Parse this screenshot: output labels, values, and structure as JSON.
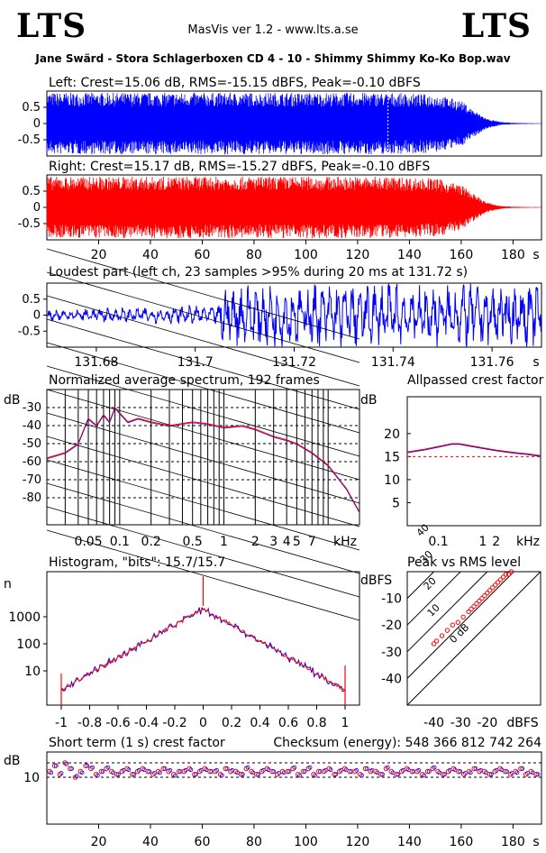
{
  "header": {
    "logo_left": "LTS",
    "logo_right": "LTS",
    "app_title": "MasVis ver 1.2 - www.lts.a.se",
    "track_title": "Jane Swärd - Stora Schlagerboxen CD 4 - 10 - Shimmy Shimmy Ko-Ko Bop.wav"
  },
  "colors": {
    "left": "#0000ff",
    "right": "#ff0000",
    "frame": "#000000"
  },
  "chart_data": [
    {
      "id": "left_wave",
      "type": "area",
      "title": "Left: Crest=15.06 dB, RMS=-15.15 dBFS, Peak=-0.10 dBFS",
      "ylim": [
        -1,
        1
      ],
      "yticks": [
        "0.5",
        "0",
        "-0.5"
      ],
      "envelope": {
        "x": [
          0,
          5,
          20,
          60,
          100,
          130,
          150,
          160,
          165,
          170,
          175,
          180,
          190
        ],
        "amp": [
          0.95,
          0.95,
          0.95,
          0.95,
          0.95,
          0.95,
          0.9,
          0.7,
          0.4,
          0.15,
          0.05,
          0.02,
          0.01
        ]
      },
      "marker_x": 131.72,
      "xlim": [
        0,
        191
      ]
    },
    {
      "id": "right_wave",
      "type": "area",
      "title": "Right: Crest=15.17 dB, RMS=-15.27 dBFS, Peak=-0.10 dBFS",
      "ylim": [
        -1,
        1
      ],
      "yticks": [
        "0.5",
        "0",
        "-0.5"
      ],
      "xticks": [
        "20",
        "40",
        "60",
        "80",
        "100",
        "120",
        "140",
        "160",
        "180"
      ],
      "xunit": "s",
      "xlim": [
        0,
        191
      ]
    },
    {
      "id": "loudest",
      "type": "line",
      "title": "Loudest part (left  ch, 23 samples >95% during 20 ms at 131.72 s)",
      "xlim": [
        131.67,
        131.77
      ],
      "xticks": [
        "131.68",
        "131.7",
        "131.72",
        "131.74",
        "131.76"
      ],
      "xunit": "s",
      "yticks": [
        "0.5",
        "0",
        "-0.5"
      ],
      "ylim": [
        -1,
        1
      ]
    },
    {
      "id": "spectrum",
      "type": "line",
      "title": "Normalized average spectrum, 192 frames",
      "ylabel": "dB",
      "yticks": [
        "-30",
        "-40",
        "-50",
        "-60",
        "-70",
        "-80"
      ],
      "xticks": [
        "0.05",
        "0.1",
        "0.2",
        "0.5",
        "1",
        "2",
        "3",
        "4",
        "5",
        "7"
      ],
      "xunit": "kHz",
      "x_khz": [
        0.02,
        0.03,
        0.04,
        0.05,
        0.06,
        0.07,
        0.08,
        0.09,
        0.1,
        0.12,
        0.15,
        0.2,
        0.3,
        0.5,
        0.7,
        1,
        1.5,
        2,
        3,
        4,
        5,
        7,
        10,
        15,
        20
      ],
      "y_db": [
        -58,
        -55,
        -50,
        -36,
        -40,
        -34,
        -38,
        -30,
        -33,
        -38,
        -36,
        -38,
        -40,
        -38,
        -39,
        -41,
        -40,
        -42,
        -46,
        -48,
        -50,
        -55,
        -62,
        -75,
        -88
      ]
    },
    {
      "id": "allpass",
      "type": "line",
      "title": "Allpassed crest factor",
      "ylabel": "dB",
      "yticks": [
        "20",
        "15",
        "10",
        "5"
      ],
      "xticks": [
        "0.1",
        "1",
        "2"
      ],
      "xunit": "kHz",
      "ref_db": 15,
      "x_khz": [
        0.02,
        0.05,
        0.1,
        0.2,
        0.3,
        0.5,
        1,
        2,
        5,
        10,
        20
      ],
      "y_db": [
        16,
        16.6,
        17.2,
        17.8,
        17.8,
        17.4,
        16.9,
        16.4,
        15.9,
        15.6,
        15.2
      ]
    },
    {
      "id": "histogram",
      "type": "line",
      "title": "Histogram, \"bits\": 15.7/15.7",
      "ylabel": "n",
      "yticks": [
        "1000",
        "100",
        "10"
      ],
      "xticks": [
        "-1",
        "-0.8",
        "-0.6",
        "-0.4",
        "-0.2",
        "0",
        "0.2",
        "0.4",
        "0.6",
        "0.8",
        "1"
      ]
    },
    {
      "id": "peak_rms",
      "type": "scatter",
      "title": "Peak vs RMS level",
      "ylabel": "dBFS",
      "yticks": [
        "-10",
        "-20",
        "-30",
        "-40"
      ],
      "xticks": [
        "-40",
        "-30",
        "-20"
      ],
      "xunit": "dBFS",
      "diag_labels": [
        "40",
        "30",
        "20",
        "10",
        "0 dB"
      ],
      "points": [
        [
          -40,
          -27
        ],
        [
          -39,
          -26
        ],
        [
          -37,
          -24
        ],
        [
          -35,
          -22
        ],
        [
          -33,
          -20
        ],
        [
          -31,
          -19
        ],
        [
          -29,
          -17
        ],
        [
          -27,
          -15
        ],
        [
          -26,
          -14
        ],
        [
          -25,
          -13
        ],
        [
          -24,
          -12
        ],
        [
          -23,
          -11
        ],
        [
          -22,
          -10
        ],
        [
          -21,
          -9
        ],
        [
          -20,
          -8
        ],
        [
          -19,
          -7
        ],
        [
          -18,
          -6
        ],
        [
          -17,
          -5
        ],
        [
          -16,
          -4
        ],
        [
          -15,
          -3
        ],
        [
          -14,
          -2
        ],
        [
          -13,
          -1
        ],
        [
          -12,
          -1
        ],
        [
          -11,
          0
        ]
      ]
    },
    {
      "id": "short_crest",
      "type": "scatter",
      "title": "Short term (1 s) crest factor",
      "checksum": "Checksum (energy):   548 366 812 742 264",
      "ylabel": "dB",
      "yticks": [
        "10"
      ],
      "xticks": [
        "20",
        "40",
        "60",
        "80",
        "100",
        "120",
        "140",
        "160",
        "180"
      ],
      "xunit": "s",
      "ref_dashed_db": [
        10,
        15
      ],
      "x_s": [
        1,
        3,
        5,
        7,
        9,
        11,
        13,
        15,
        17,
        19,
        21,
        23,
        25,
        27,
        29,
        31,
        33,
        35,
        37,
        39,
        41,
        43,
        45,
        47,
        49,
        51,
        53,
        55,
        57,
        59,
        61,
        63,
        65,
        67,
        69,
        71,
        73,
        75,
        77,
        79,
        81,
        83,
        85,
        87,
        89,
        91,
        93,
        95,
        97,
        99,
        101,
        103,
        105,
        107,
        109,
        111,
        113,
        115,
        117,
        119,
        121,
        123,
        125,
        127,
        129,
        131,
        133,
        135,
        137,
        139,
        141,
        143,
        145,
        147,
        149,
        151,
        153,
        155,
        157,
        159,
        161,
        163,
        165,
        167,
        169,
        171,
        173,
        175,
        177,
        179,
        181,
        183,
        185,
        187,
        189
      ],
      "y_db": [
        12,
        14,
        11,
        15,
        13,
        10,
        12,
        14,
        13,
        11,
        12,
        13,
        12,
        11,
        12,
        13,
        11,
        12,
        13,
        12,
        11,
        12,
        13,
        12,
        11,
        12,
        12,
        13,
        11,
        12,
        13,
        12,
        12,
        11,
        13,
        12,
        12,
        11,
        13,
        12,
        11,
        12,
        13,
        12,
        11,
        12,
        12,
        13,
        11,
        12,
        13,
        11,
        12,
        12,
        13,
        11,
        12,
        13,
        12,
        12,
        11,
        13,
        12,
        12,
        11,
        13,
        12,
        11,
        12,
        13,
        12,
        12,
        11,
        12,
        13,
        12,
        11,
        12,
        13,
        12,
        11,
        12,
        13,
        12,
        12,
        11,
        12,
        13,
        12,
        11,
        12,
        13,
        11,
        12,
        11
      ]
    }
  ]
}
